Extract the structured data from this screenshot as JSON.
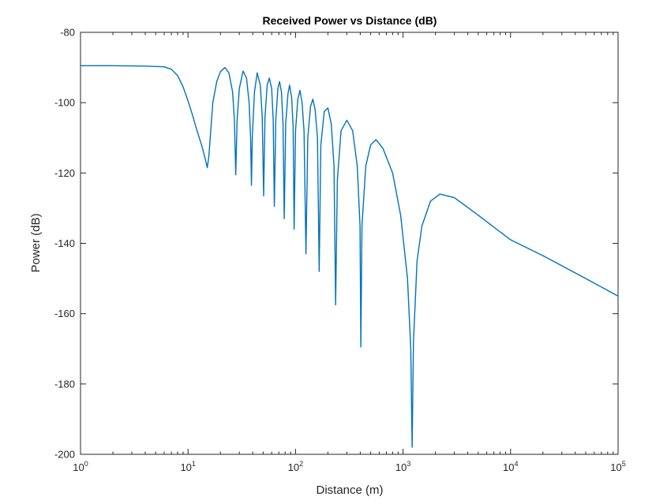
{
  "chart_data": {
    "type": "line",
    "title": "Received Power vs Distance (dB)",
    "xlabel": "Distance (m)",
    "ylabel": "Power (dB)",
    "x_scale": "log",
    "xlim": [
      1,
      100000
    ],
    "ylim": [
      -200,
      -80
    ],
    "x_ticks": [
      {
        "value": 1,
        "base": "10",
        "exp": "0"
      },
      {
        "value": 10,
        "base": "10",
        "exp": "1"
      },
      {
        "value": 100,
        "base": "10",
        "exp": "2"
      },
      {
        "value": 1000,
        "base": "10",
        "exp": "3"
      },
      {
        "value": 10000,
        "base": "10",
        "exp": "4"
      },
      {
        "value": 100000,
        "base": "10",
        "exp": "5"
      }
    ],
    "y_ticks": [
      {
        "value": -80,
        "label": "-80"
      },
      {
        "value": -100,
        "label": "-100"
      },
      {
        "value": -120,
        "label": "-120"
      },
      {
        "value": -140,
        "label": "-140"
      },
      {
        "value": -160,
        "label": "-160"
      },
      {
        "value": -180,
        "label": "-180"
      },
      {
        "value": -200,
        "label": "-200"
      }
    ],
    "grid": false,
    "line_color": "#0072BD",
    "series": [
      {
        "points": [
          [
            1,
            -89.5
          ],
          [
            2,
            -89.5
          ],
          [
            4,
            -89.6
          ],
          [
            6,
            -89.8
          ],
          [
            7,
            -90.5
          ],
          [
            8,
            -92.3
          ],
          [
            9,
            -95.5
          ],
          [
            10,
            -99.5
          ],
          [
            11,
            -103.5
          ],
          [
            12,
            -107.5
          ],
          [
            13.5,
            -112.5
          ],
          [
            14.6,
            -116.5
          ],
          [
            15.1,
            -118.5
          ],
          [
            15.6,
            -115.5
          ],
          [
            17,
            -100
          ],
          [
            18.5,
            -94
          ],
          [
            20,
            -91.2
          ],
          [
            22,
            -90
          ],
          [
            24,
            -91.5
          ],
          [
            26,
            -97
          ],
          [
            27,
            -105
          ],
          [
            27.8,
            -120.5
          ],
          [
            28.6,
            -105
          ],
          [
            30,
            -96
          ],
          [
            32.5,
            -91
          ],
          [
            35,
            -93
          ],
          [
            37,
            -100
          ],
          [
            38.2,
            -110
          ],
          [
            38.9,
            -123.5
          ],
          [
            39.6,
            -110
          ],
          [
            41.5,
            -97
          ],
          [
            44,
            -91.5
          ],
          [
            47,
            -95
          ],
          [
            49,
            -104
          ],
          [
            50.5,
            -126.5
          ],
          [
            52,
            -104
          ],
          [
            54.5,
            -95
          ],
          [
            57,
            -93
          ],
          [
            60,
            -96
          ],
          [
            62,
            -105
          ],
          [
            63.5,
            -129.5
          ],
          [
            65.5,
            -105
          ],
          [
            68.5,
            -96
          ],
          [
            71,
            -94
          ],
          [
            74,
            -97
          ],
          [
            76.5,
            -106
          ],
          [
            78.5,
            -133
          ],
          [
            81,
            -106
          ],
          [
            85,
            -97.5
          ],
          [
            88,
            -95
          ],
          [
            92,
            -98.5
          ],
          [
            95,
            -107
          ],
          [
            97,
            -136
          ],
          [
            100,
            -108
          ],
          [
            105,
            -99
          ],
          [
            110,
            -96.5
          ],
          [
            115,
            -100
          ],
          [
            120,
            -108
          ],
          [
            125,
            -143
          ],
          [
            130,
            -110
          ],
          [
            138,
            -101
          ],
          [
            145,
            -99
          ],
          [
            152,
            -102
          ],
          [
            160,
            -110
          ],
          [
            166,
            -148
          ],
          [
            172,
            -112
          ],
          [
            185,
            -102.5
          ],
          [
            200,
            -101.5
          ],
          [
            215,
            -106
          ],
          [
            228,
            -118
          ],
          [
            236,
            -157.5
          ],
          [
            245,
            -122
          ],
          [
            265,
            -108
          ],
          [
            300,
            -105
          ],
          [
            340,
            -108
          ],
          [
            375,
            -118
          ],
          [
            398,
            -135
          ],
          [
            405,
            -169.5
          ],
          [
            415,
            -135
          ],
          [
            450,
            -118
          ],
          [
            500,
            -112
          ],
          [
            560,
            -110.5
          ],
          [
            650,
            -113
          ],
          [
            800,
            -120
          ],
          [
            950,
            -132
          ],
          [
            1100,
            -150
          ],
          [
            1180,
            -170
          ],
          [
            1215,
            -198
          ],
          [
            1250,
            -168
          ],
          [
            1350,
            -145
          ],
          [
            1500,
            -135
          ],
          [
            1800,
            -128
          ],
          [
            2200,
            -126
          ],
          [
            3000,
            -127
          ],
          [
            5000,
            -132
          ],
          [
            10000,
            -139
          ],
          [
            20000,
            -143.5
          ],
          [
            50000,
            -150
          ],
          [
            100000,
            -155
          ]
        ]
      }
    ]
  }
}
